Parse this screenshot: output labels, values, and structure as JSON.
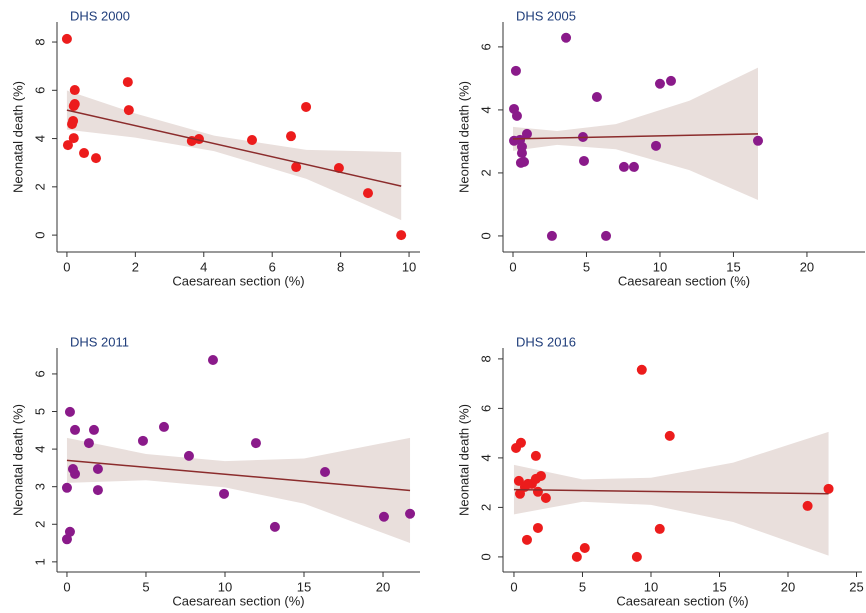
{
  "chart_data": [
    {
      "type": "scatter",
      "title": "DHS 2000",
      "x_label": "Caesarean section (%)",
      "y_label": "Neonatal death (%)",
      "color": "#ec1c1c",
      "fit_color": "#8b2c2c",
      "band_color": "#e9dfdc",
      "x": [
        0,
        0.03,
        0.15,
        0.18,
        0.2,
        0.2,
        0.23,
        0.23,
        0.5,
        0.85,
        1.78,
        1.81,
        3.65,
        3.86,
        5.41,
        6.55,
        6.7,
        6.99,
        7.95,
        8.8,
        9.77
      ],
      "values": [
        8.13,
        3.73,
        4.6,
        4.73,
        4.02,
        5.35,
        5.43,
        6.01,
        3.4,
        3.19,
        6.34,
        5.18,
        3.9,
        3.98,
        3.94,
        4.1,
        2.82,
        5.31,
        2.78,
        1.74,
        0
      ],
      "fit": {
        "x": [
          0,
          9.77
        ],
        "y": [
          5.18,
          2.03
        ]
      },
      "band": {
        "x": [
          0,
          2,
          4.3,
          7,
          9.77
        ],
        "lower": [
          4.37,
          4.04,
          3.48,
          2.33,
          0.62
        ],
        "upper": [
          5.99,
          5.04,
          4.12,
          3.53,
          3.44
        ]
      },
      "xlim": [
        -0.29,
        10.32
      ],
      "ylim": [
        -0.7,
        8.83
      ],
      "xticks": [
        0,
        2,
        4,
        6,
        8,
        10
      ],
      "yticks": [
        0,
        2,
        4,
        6,
        8
      ]
    },
    {
      "type": "scatter",
      "title": "DHS 2005",
      "x_label": "Caesarean section (%)",
      "y_label": "Neonatal death (%)",
      "color": "#8a1a8a",
      "fit_color": "#8b2c2c",
      "band_color": "#e9dfdc",
      "x": [
        0.2,
        0.07,
        0.27,
        0.07,
        0.48,
        0.61,
        0.61,
        0.54,
        0.75,
        0.95,
        3.61,
        5.71,
        4.76,
        4.83,
        2.65,
        6.33,
        7.55,
        8.23,
        9.73,
        10.0,
        10.75,
        16.67
      ],
      "values": [
        5.24,
        4.03,
        3.81,
        3.02,
        3.05,
        2.83,
        2.63,
        2.32,
        2.35,
        3.24,
        6.29,
        4.41,
        3.14,
        2.38,
        0,
        0,
        2.19,
        2.19,
        2.86,
        4.83,
        4.92,
        3.02
      ],
      "fit": {
        "x": [
          0,
          16.67
        ],
        "y": [
          3.08,
          3.24
        ]
      },
      "band": {
        "x": [
          0,
          3,
          7,
          12,
          16.67
        ],
        "lower": [
          2.7,
          2.89,
          2.75,
          2.09,
          1.14
        ],
        "upper": [
          3.46,
          3.33,
          3.55,
          4.29,
          5.34
        ]
      },
      "xlim": [
        -0.68,
        23.95
      ],
      "ylim": [
        -0.51,
        6.79
      ],
      "xticks": [
        0,
        5,
        10,
        15,
        20
      ],
      "yticks": [
        0,
        2,
        4,
        6
      ]
    },
    {
      "type": "scatter",
      "title": "DHS 2011",
      "x_label": "Caesarean section (%)",
      "y_label": "Neonatal death (%)",
      "color": "#8a1a8a",
      "fit_color": "#8b2c2c",
      "band_color": "#e9dfdc",
      "x": [
        9.24,
        0.19,
        0.51,
        1.71,
        1.39,
        6.14,
        4.81,
        11.96,
        7.72,
        0.38,
        1.96,
        0.51,
        16.33,
        0,
        1.96,
        9.94,
        13.16,
        20.06,
        21.71,
        0.19,
        0
      ],
      "values": [
        6.37,
        4.99,
        4.51,
        4.51,
        4.16,
        4.59,
        4.22,
        4.16,
        3.82,
        3.47,
        3.47,
        3.34,
        3.39,
        2.97,
        2.91,
        2.81,
        1.93,
        2.2,
        2.28,
        1.8,
        1.6
      ],
      "fit": {
        "x": [
          0,
          21.71
        ],
        "y": [
          3.7,
          2.9
        ]
      },
      "band": {
        "x": [
          0,
          5,
          10,
          15,
          21.71
        ],
        "lower": [
          3.1,
          3.17,
          2.98,
          2.55,
          1.5
        ],
        "upper": [
          4.3,
          3.87,
          3.68,
          3.75,
          4.3
        ]
      },
      "xlim": [
        -0.63,
        22.34
      ],
      "ylim": [
        0.73,
        6.69
      ],
      "xticks": [
        0,
        5,
        10,
        15,
        20
      ],
      "yticks": [
        1,
        2,
        3,
        4,
        5,
        6
      ]
    },
    {
      "type": "scatter",
      "title": "DHS 2016",
      "x_label": "Caesarean section (%)",
      "y_label": "Neonatal death (%)",
      "color": "#ec1c1c",
      "fit_color": "#8b2c2c",
      "band_color": "#e9dfdc",
      "x": [
        9.33,
        11.37,
        0.15,
        0.51,
        1.6,
        0.36,
        0.8,
        1.02,
        1.31,
        1.6,
        1.97,
        1.75,
        0.44,
        2.33,
        21.43,
        22.96,
        1.75,
        0.95,
        10.64,
        5.17,
        4.59,
        8.97
      ],
      "values": [
        7.56,
        4.89,
        4.4,
        4.61,
        4.08,
        3.07,
        2.83,
        2.95,
        2.95,
        3.15,
        3.27,
        2.63,
        2.55,
        2.38,
        2.06,
        2.75,
        1.17,
        0.69,
        1.13,
        0.36,
        0,
        0
      ],
      "fit": {
        "x": [
          0,
          22.96
        ],
        "y": [
          2.72,
          2.55
        ]
      },
      "band": {
        "x": [
          0,
          5,
          10,
          16,
          22.96
        ],
        "lower": [
          1.72,
          2.23,
          2.1,
          1.41,
          0.05
        ],
        "upper": [
          3.72,
          3.13,
          3.2,
          3.81,
          5.05
        ]
      },
      "xlim": [
        -0.8,
        25.4
      ],
      "ylim": [
        -0.61,
        8.44
      ],
      "xticks": [
        0,
        5,
        10,
        15,
        20,
        25
      ],
      "yticks": [
        0,
        2,
        4,
        6,
        8
      ]
    }
  ]
}
